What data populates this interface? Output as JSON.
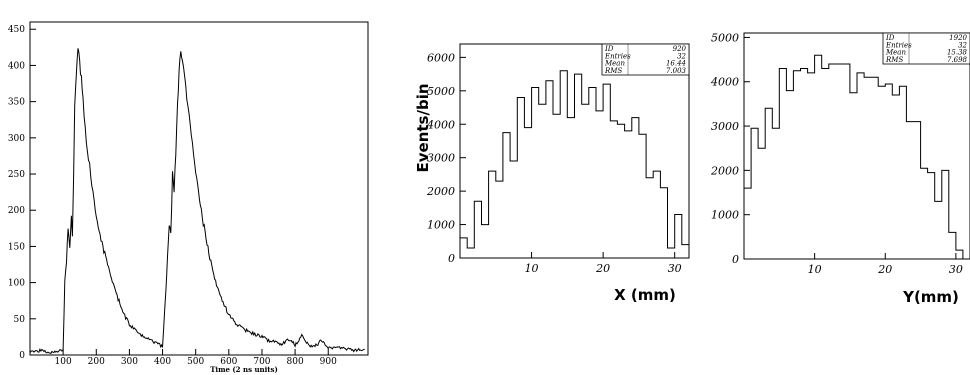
{
  "chart_data": [
    {
      "type": "line",
      "xlabel": "Time (2 ns units)",
      "ylabel": "",
      "xlim": [
        0,
        1020
      ],
      "ylim": [
        0,
        460
      ],
      "x_ticks": [
        100,
        200,
        300,
        400,
        500,
        600,
        700,
        800,
        900
      ],
      "y_ticks": [
        0,
        50,
        100,
        150,
        200,
        250,
        300,
        350,
        400,
        450
      ],
      "grid": false,
      "series": [
        {
          "x": [
            0,
            30,
            60,
            90,
            100,
            105,
            110,
            115,
            120,
            125,
            128,
            132,
            135,
            140,
            145,
            150,
            155,
            160,
            170,
            180,
            190,
            200,
            220,
            240,
            260,
            280,
            300,
            330,
            360,
            380,
            400,
            410,
            415,
            420,
            425,
            430,
            435,
            440,
            445,
            450,
            455,
            460,
            470,
            480,
            490,
            500,
            520,
            540,
            560,
            580,
            600,
            630,
            660,
            700,
            720,
            740,
            760,
            780,
            800,
            820,
            840,
            860,
            880,
            900,
            940,
            980,
            1010
          ],
          "values": [
            5,
            6,
            4,
            6,
            8,
            100,
            130,
            175,
            150,
            190,
            160,
            250,
            340,
            390,
            420,
            400,
            380,
            350,
            300,
            260,
            225,
            190,
            150,
            115,
            85,
            60,
            42,
            28,
            22,
            16,
            12,
            90,
            135,
            180,
            170,
            250,
            230,
            280,
            340,
            390,
            420,
            410,
            370,
            330,
            290,
            250,
            190,
            140,
            100,
            75,
            55,
            40,
            32,
            25,
            20,
            18,
            15,
            22,
            14,
            26,
            14,
            12,
            20,
            10,
            10,
            6,
            8
          ]
        }
      ]
    },
    {
      "type": "bar",
      "ylabel": "Events/bin",
      "xlabel": "X (mm)",
      "xlim": [
        0,
        32
      ],
      "ylim": [
        0,
        6400
      ],
      "x_ticks": [
        10,
        20,
        30
      ],
      "y_ticks": [
        0,
        1000,
        2000,
        3000,
        4000,
        5000,
        6000
      ],
      "stats": [
        [
          "ID",
          "920"
        ],
        [
          "Entries",
          "32"
        ],
        [
          "Mean",
          "16.44"
        ],
        [
          "RMS",
          "7.003"
        ]
      ],
      "values": [
        600,
        300,
        1700,
        1000,
        2600,
        2300,
        3750,
        2900,
        4800,
        3900,
        5100,
        4600,
        5300,
        4300,
        5600,
        4200,
        5500,
        4600,
        5100,
        4400,
        5200,
        4100,
        4000,
        3800,
        4200,
        3700,
        2400,
        2600,
        2100,
        300,
        1300,
        400
      ]
    },
    {
      "type": "bar",
      "xlabel": "Y(mm)",
      "xlim": [
        0,
        32
      ],
      "ylim": [
        0,
        5100
      ],
      "x_ticks": [
        10,
        20,
        30
      ],
      "y_ticks": [
        0,
        1000,
        2000,
        3000,
        4000,
        5000
      ],
      "stats": [
        [
          "ID",
          "1920"
        ],
        [
          "Entries",
          "32"
        ],
        [
          "Mean",
          "15.38"
        ],
        [
          "RMS",
          "7.698"
        ]
      ],
      "values": [
        1600,
        2950,
        2500,
        3400,
        2950,
        4300,
        3800,
        4250,
        4300,
        4200,
        4600,
        4300,
        4400,
        4400,
        4400,
        3750,
        4200,
        4100,
        4100,
        3900,
        3950,
        3700,
        3900,
        3100,
        3100,
        2050,
        1950,
        1300,
        2000,
        600,
        200,
        0
      ]
    }
  ]
}
